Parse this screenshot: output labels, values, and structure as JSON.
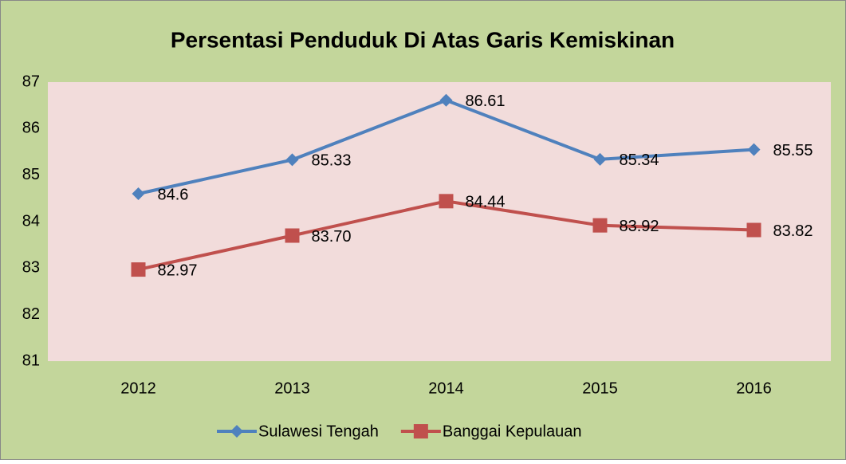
{
  "chart_data": {
    "type": "line",
    "title": "Persentasi Penduduk Di Atas Garis Kemiskinan",
    "categories": [
      "2012",
      "2013",
      "2014",
      "2015",
      "2016"
    ],
    "series": [
      {
        "name": "Sulawesi Tengah",
        "color": "#4f81bd",
        "marker": "diamond",
        "values": [
          84.6,
          85.33,
          86.61,
          85.34,
          85.55
        ],
        "value_labels": [
          "84.6",
          "85.33",
          "86.61",
          "85.34",
          "85.55"
        ]
      },
      {
        "name": "Banggai Kepulauan",
        "color": "#c0504d",
        "marker": "square",
        "values": [
          82.97,
          83.7,
          84.44,
          83.92,
          83.82
        ],
        "value_labels": [
          "82.97",
          "83.70",
          "84.44",
          "83.92",
          "83.82"
        ]
      }
    ],
    "ylim": [
      81,
      87
    ],
    "yticks": [
      81,
      82,
      83,
      84,
      85,
      86,
      87
    ],
    "grid": false,
    "legend": "bottom"
  }
}
